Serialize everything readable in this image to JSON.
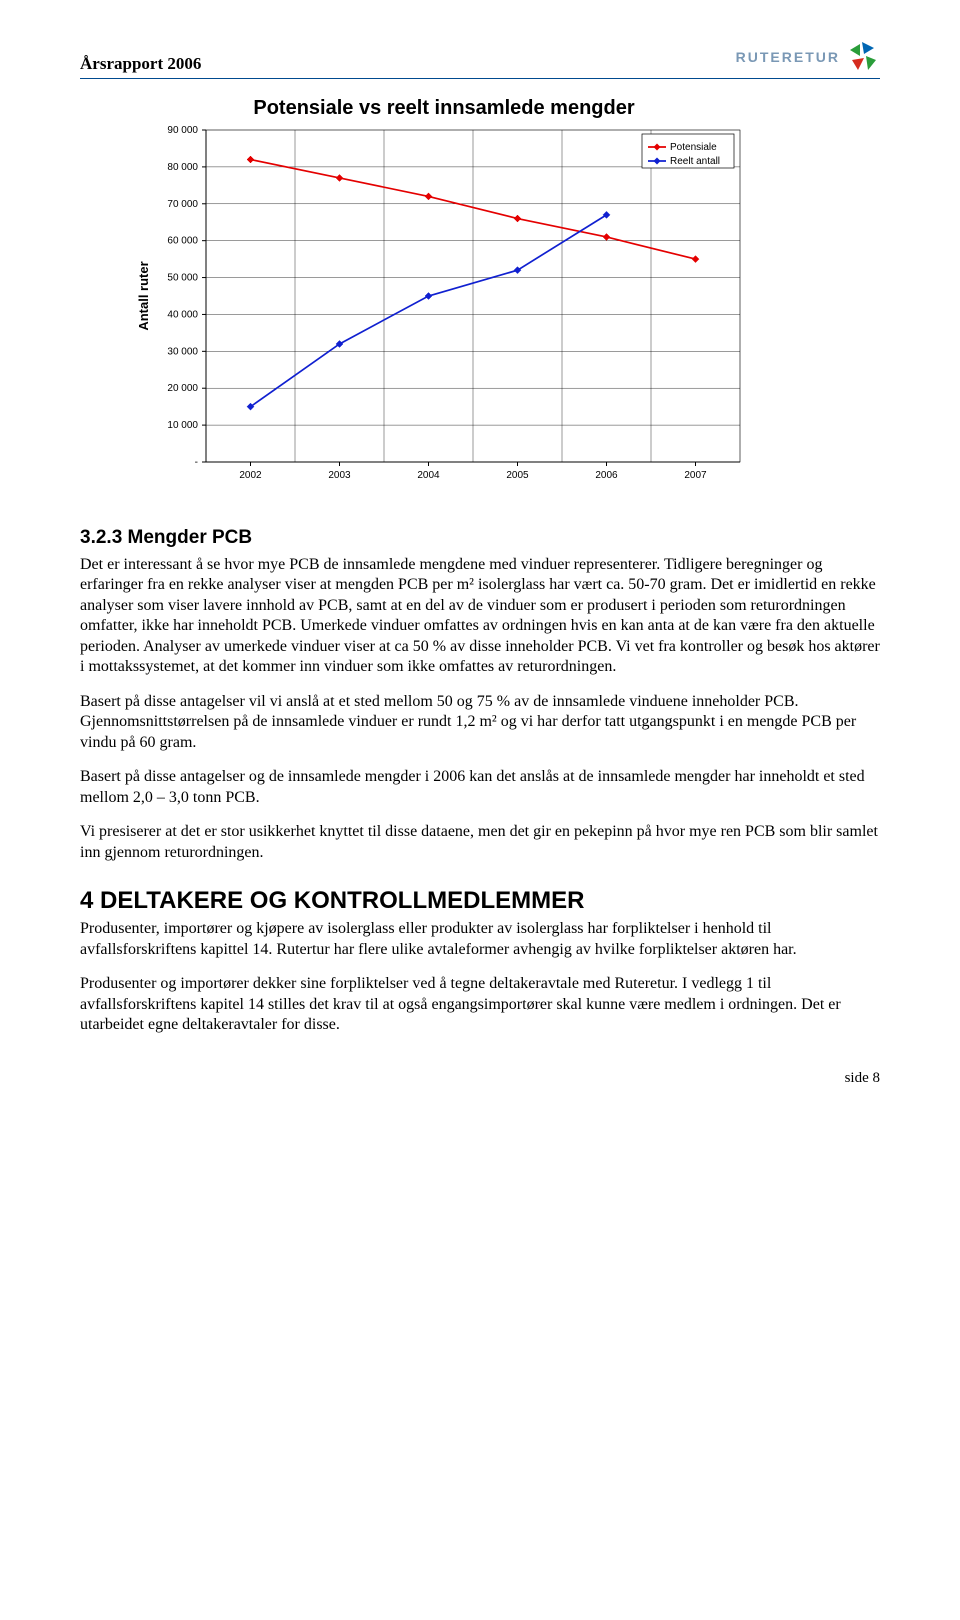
{
  "header": {
    "title": "Årsrapport 2006",
    "logo_text": "RUTERETUR",
    "logo_colors": {
      "blue": "#0066b3",
      "green": "#2a9d3a",
      "red": "#d52b1e"
    }
  },
  "chart": {
    "type": "line",
    "title": "Potensiale vs reelt innsamlede mengder",
    "ylabel": "Antall ruter",
    "categories": [
      "2002",
      "2003",
      "2004",
      "2005",
      "2006",
      "2007"
    ],
    "series": [
      {
        "name": "Potensiale",
        "color": "#e40000",
        "marker_fill": "#e40000",
        "width": 1.7,
        "values": [
          82000,
          77000,
          72000,
          66000,
          61000,
          55000
        ]
      },
      {
        "name": "Reelt antall",
        "color": "#1020d0",
        "marker_fill": "#1020d0",
        "width": 1.7,
        "values": [
          15000,
          32000,
          45000,
          52000,
          67000,
          null
        ]
      }
    ],
    "legend": {
      "position": "top-right",
      "items": [
        "Potensiale",
        "Reelt antall"
      ],
      "font_size": 10,
      "border_color": "#000000"
    },
    "ylim": [
      0,
      90000
    ],
    "ytick_step": 10000,
    "yticks": [
      "-",
      "10 000",
      "20 000",
      "30 000",
      "40 000",
      "50 000",
      "60 000",
      "70 000",
      "80 000",
      "90 000"
    ],
    "grid_color": "#000000",
    "grid_width": 0.4,
    "plot_border_color": "#808080",
    "axis_color": "#000000",
    "tick_font_size": 10,
    "title_font_size": 20,
    "ylabel_font_size": 13,
    "background_color": "#ffffff",
    "marker": "diamond",
    "marker_size": 7
  },
  "section323": {
    "heading": "3.2.3  Mengder PCB",
    "p1": "Det er interessant å se hvor mye PCB de innsamlede mengdene med vinduer representerer. Tidligere beregninger og erfaringer fra en rekke analyser viser at mengden PCB per m² isolerglass har vært ca. 50-70 gram. Det er imidlertid en rekke analyser som viser lavere innhold av PCB, samt at en del av de vinduer som er produsert i perioden som returordningen omfatter, ikke har inneholdt PCB. Umerkede vinduer omfattes av ordningen hvis en kan anta at de kan være fra den aktuelle perioden. Analyser av umerkede vinduer viser at ca 50 % av disse inneholder PCB. Vi vet fra kontroller og besøk hos aktører i mottakssystemet, at det kommer inn vinduer som ikke omfattes av returordningen.",
    "p2": "Basert på disse antagelser vil vi anslå at et sted mellom 50 og 75 % av de innsamlede vinduene inneholder PCB. Gjennomsnittstørrelsen på de innsamlede vinduer er rundt 1,2 m² og vi har derfor tatt utgangspunkt i en mengde PCB per vindu på 60 gram.",
    "p3": "Basert på disse antagelser og de innsamlede mengder i 2006 kan det anslås at de innsamlede mengder har inneholdt et sted mellom 2,0 – 3,0 tonn PCB.",
    "p4": "Vi presiserer at det er stor usikkerhet knyttet til disse dataene, men det gir en pekepinn på hvor mye ren PCB som blir samlet inn gjennom returordningen."
  },
  "section4": {
    "heading": "4   DELTAKERE OG KONTROLLMEDLEMMER",
    "p1": "Produsenter, importører og kjøpere av isolerglass eller produkter av isolerglass har forpliktelser i henhold til avfallsforskriftens kapittel 14. Rutertur har flere ulike avtaleformer avhengig av hvilke forpliktelser aktøren har.",
    "p2": "Produsenter og importører dekker sine forpliktelser ved å tegne deltakeravtale med Ruteretur. I vedlegg 1 til avfallsforskriftens kapitel 14 stilles det krav til at også engangsimportører skal kunne være medlem i ordningen. Det er utarbeidet egne deltakeravtaler for disse."
  },
  "footer": {
    "page": "side 8"
  }
}
